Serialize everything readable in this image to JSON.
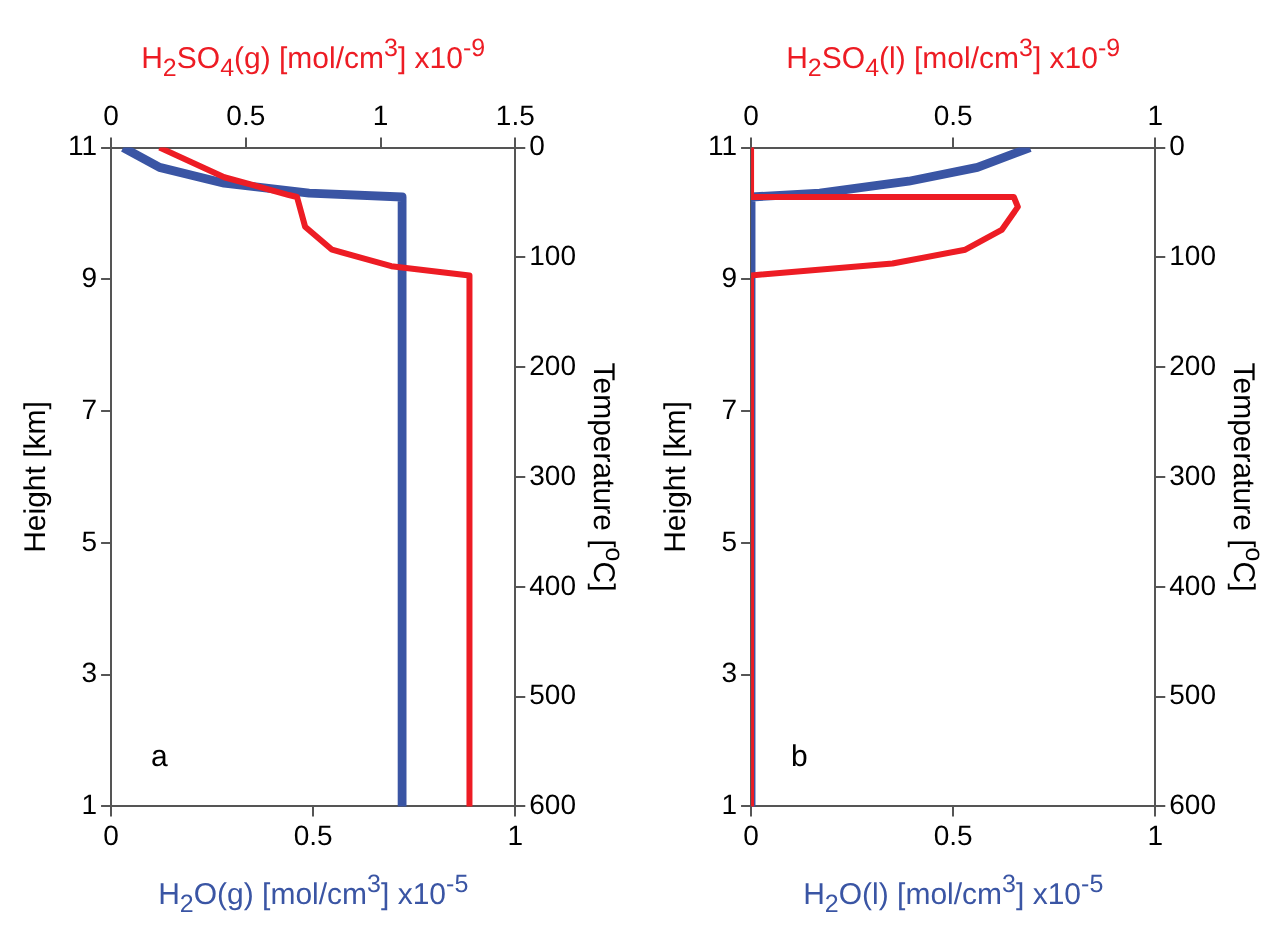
{
  "chart_data": [
    {
      "type": "line",
      "xlabel": "H$_{2}$O(g) [mol/cm$^{3}$]  x10$^{-5}$",
      "x2label": "H$_{2}$SO$_{4}$(g) [mol/cm$^{3}$] x10$^{-9}$",
      "ylabel": "Height [km]",
      "y2label": "Temperature [$^{o}$C]",
      "xlim": [
        0,
        1
      ],
      "xticks": [
        0,
        0.5,
        1
      ],
      "x2lim": [
        0,
        1.5
      ],
      "x2ticks": [
        0,
        0.5,
        1,
        1.5
      ],
      "ylim": [
        1,
        11
      ],
      "yticks": [
        1,
        3,
        5,
        7,
        9,
        11
      ],
      "y2lim": [
        600,
        0
      ],
      "y2ticks": [
        0,
        100,
        200,
        300,
        400,
        500,
        600
      ],
      "grid": false,
      "legend": false,
      "marker": "none",
      "annotations": [
        "a"
      ],
      "series": [
        {
          "color": "#3a55a4",
          "x": [
            0.03,
            0.12,
            0.28,
            0.49,
            0.72,
            0.72
          ],
          "values": [
            11,
            10.7,
            10.46,
            10.31,
            10.25,
            1
          ]
        },
        {
          "color": "#ed1c24",
          "axis": "x2",
          "x": [
            0.18,
            0.42,
            0.66,
            0.69,
            0.72,
            0.82,
            1.04,
            1.33,
            1.33
          ],
          "values": [
            11,
            10.55,
            10.28,
            10.25,
            9.8,
            9.45,
            9.2,
            9.06,
            1
          ]
        }
      ]
    },
    {
      "type": "line",
      "xlabel": "H$_{2}$O(l) [mol/cm$^{3}$]  x10$^{-5}$",
      "x2label": "H$_{2}$SO$_{4}$(l) [mol/cm$^{3}$] x10$^{-9}$",
      "ylabel": "Height [km]",
      "y2label": "Temperature [$^{o}$C]",
      "xlim": [
        0,
        1
      ],
      "xticks": [
        0,
        0.5,
        1
      ],
      "x2lim": [
        0,
        1
      ],
      "x2ticks": [
        0,
        0.5,
        1
      ],
      "ylim": [
        1,
        11
      ],
      "yticks": [
        1,
        3,
        5,
        7,
        9,
        11
      ],
      "y2lim": [
        600,
        0
      ],
      "y2ticks": [
        0,
        100,
        200,
        300,
        400,
        500,
        600
      ],
      "grid": false,
      "legend": false,
      "marker": "none",
      "annotations": [
        "b"
      ],
      "series": [
        {
          "color": "#3a55a4",
          "x": [
            0.69,
            0.56,
            0.39,
            0.17,
            0,
            0
          ],
          "values": [
            11,
            10.7,
            10.49,
            10.31,
            10.25,
            1
          ]
        },
        {
          "color": "#ed1c24",
          "axis": "x2",
          "x": [
            0,
            0,
            0.65,
            0.66,
            0.62,
            0.53,
            0.35,
            0,
            0
          ],
          "values": [
            11,
            10.25,
            10.25,
            10.1,
            9.75,
            9.45,
            9.24,
            9.06,
            1
          ]
        }
      ]
    }
  ]
}
